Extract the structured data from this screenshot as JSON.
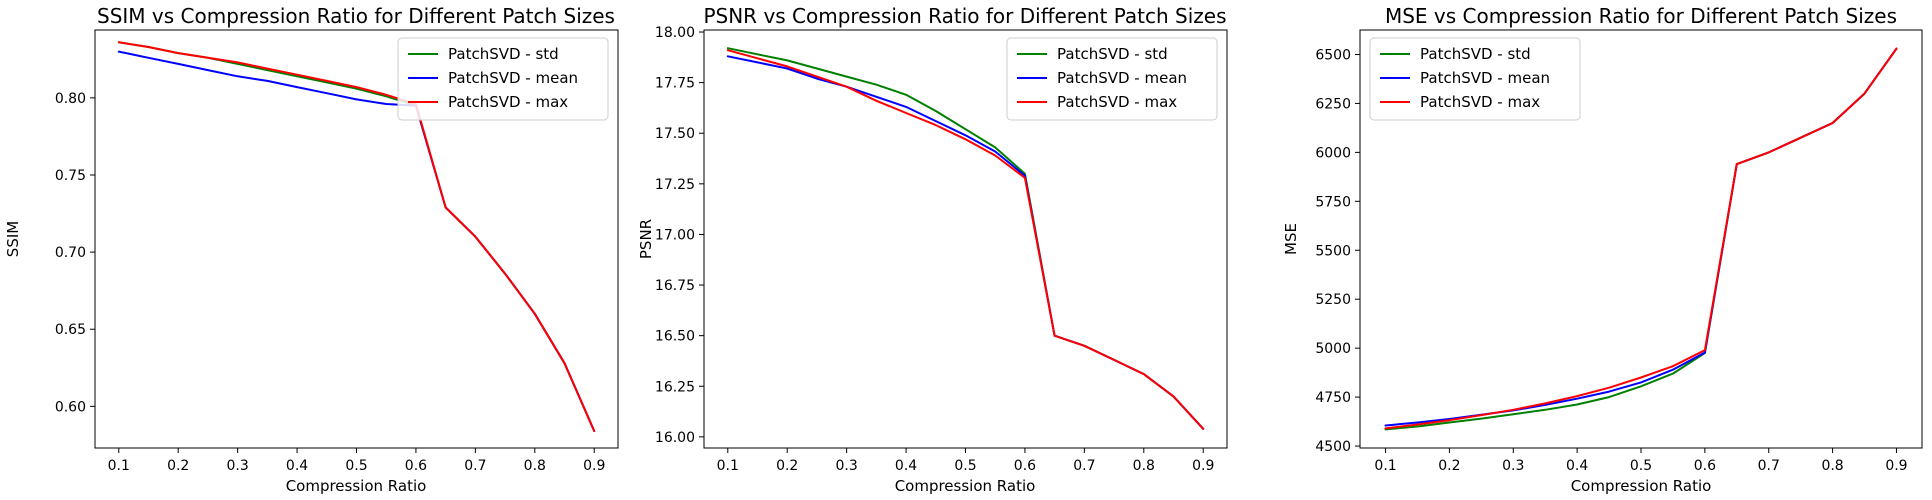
{
  "chart_data": [
    {
      "type": "line",
      "title": "SSIM vs Compression Ratio for Different Patch Sizes",
      "xlabel": "Compression Ratio",
      "ylabel": "SSIM",
      "xlim": [
        0.06,
        0.94
      ],
      "ylim": [
        0.573,
        0.844
      ],
      "xticks": [
        0.1,
        0.2,
        0.3,
        0.4,
        0.5,
        0.6,
        0.7,
        0.8,
        0.9
      ],
      "xtick_labels": [
        "0.1",
        "0.2",
        "0.3",
        "0.4",
        "0.5",
        "0.6",
        "0.7",
        "0.8",
        "0.9"
      ],
      "yticks": [
        0.6,
        0.65,
        0.7,
        0.75,
        0.8
      ],
      "ytick_labels": [
        "0.60",
        "0.65",
        "0.70",
        "0.75",
        "0.80"
      ],
      "legend_position": "top-right",
      "x": [
        0.1,
        0.15,
        0.2,
        0.25,
        0.3,
        0.35,
        0.4,
        0.45,
        0.5,
        0.55,
        0.6,
        0.65,
        0.7,
        0.75,
        0.8,
        0.85,
        0.9
      ],
      "series": [
        {
          "name": "PatchSVD - std",
          "color": "#008000",
          "values": [
            0.836,
            0.833,
            0.829,
            0.826,
            0.822,
            0.818,
            0.814,
            0.81,
            0.806,
            0.801,
            0.795,
            0.729,
            0.71,
            0.686,
            0.66,
            0.628,
            0.584
          ]
        },
        {
          "name": "PatchSVD - mean",
          "color": "#0000ff",
          "values": [
            0.83,
            0.826,
            0.822,
            0.818,
            0.814,
            0.811,
            0.807,
            0.803,
            0.799,
            0.796,
            0.795,
            0.729,
            0.71,
            0.686,
            0.66,
            0.628,
            0.584
          ]
        },
        {
          "name": "PatchSVD - max",
          "color": "#ff0000",
          "values": [
            0.836,
            0.833,
            0.829,
            0.826,
            0.823,
            0.819,
            0.815,
            0.811,
            0.807,
            0.802,
            0.796,
            0.729,
            0.71,
            0.686,
            0.66,
            0.628,
            0.584
          ]
        }
      ]
    },
    {
      "type": "line",
      "title": "PSNR vs Compression Ratio for Different Patch Sizes",
      "xlabel": "Compression Ratio",
      "ylabel": "PSNR",
      "xlim": [
        0.06,
        0.94
      ],
      "ylim": [
        15.945,
        18.01
      ],
      "xticks": [
        0.1,
        0.2,
        0.3,
        0.4,
        0.5,
        0.6,
        0.7,
        0.8,
        0.9
      ],
      "xtick_labels": [
        "0.1",
        "0.2",
        "0.3",
        "0.4",
        "0.5",
        "0.6",
        "0.7",
        "0.8",
        "0.9"
      ],
      "yticks": [
        16.0,
        16.25,
        16.5,
        16.75,
        17.0,
        17.25,
        17.5,
        17.75,
        18.0
      ],
      "ytick_labels": [
        "16.00",
        "16.25",
        "16.50",
        "16.75",
        "17.00",
        "17.25",
        "17.50",
        "17.75",
        "18.00"
      ],
      "legend_position": "top-right",
      "x": [
        0.1,
        0.15,
        0.2,
        0.25,
        0.3,
        0.35,
        0.4,
        0.45,
        0.5,
        0.55,
        0.6,
        0.65,
        0.7,
        0.75,
        0.8,
        0.85,
        0.9
      ],
      "series": [
        {
          "name": "PatchSVD - std",
          "color": "#008000",
          "values": [
            17.92,
            17.89,
            17.86,
            17.82,
            17.78,
            17.74,
            17.69,
            17.61,
            17.52,
            17.43,
            17.3,
            16.5,
            16.45,
            16.38,
            16.31,
            16.2,
            16.04
          ]
        },
        {
          "name": "PatchSVD - mean",
          "color": "#0000ff",
          "values": [
            17.88,
            17.85,
            17.82,
            17.77,
            17.73,
            17.68,
            17.63,
            17.56,
            17.49,
            17.41,
            17.29,
            16.5,
            16.45,
            16.38,
            16.31,
            16.2,
            16.04
          ]
        },
        {
          "name": "PatchSVD - max",
          "color": "#ff0000",
          "values": [
            17.91,
            17.87,
            17.83,
            17.78,
            17.73,
            17.66,
            17.6,
            17.54,
            17.47,
            17.39,
            17.28,
            16.5,
            16.45,
            16.38,
            16.31,
            16.2,
            16.04
          ]
        }
      ]
    },
    {
      "type": "line",
      "title": "MSE vs Compression Ratio for Different Patch Sizes",
      "xlabel": "Compression Ratio",
      "ylabel": "MSE",
      "xlim": [
        0.06,
        0.94
      ],
      "ylim": [
        4490,
        6625
      ],
      "xticks": [
        0.1,
        0.2,
        0.3,
        0.4,
        0.5,
        0.6,
        0.7,
        0.8,
        0.9
      ],
      "xtick_labels": [
        "0.1",
        "0.2",
        "0.3",
        "0.4",
        "0.5",
        "0.6",
        "0.7",
        "0.8",
        "0.9"
      ],
      "yticks": [
        4500,
        4750,
        5000,
        5250,
        5500,
        5750,
        6000,
        6250,
        6500
      ],
      "ytick_labels": [
        "4500",
        "4750",
        "5000",
        "5250",
        "5500",
        "5750",
        "6000",
        "6250",
        "6500"
      ],
      "legend_position": "top-left",
      "x": [
        0.1,
        0.15,
        0.2,
        0.25,
        0.3,
        0.35,
        0.4,
        0.45,
        0.5,
        0.55,
        0.6,
        0.65,
        0.7,
        0.75,
        0.8,
        0.85,
        0.9
      ],
      "series": [
        {
          "name": "PatchSVD - std",
          "color": "#008000",
          "values": [
            4585,
            4600,
            4620,
            4640,
            4662,
            4685,
            4712,
            4750,
            4805,
            4870,
            4975,
            5940,
            6000,
            6075,
            6150,
            6300,
            6530
          ]
        },
        {
          "name": "PatchSVD - mean",
          "color": "#0000ff",
          "values": [
            4605,
            4620,
            4638,
            4660,
            4682,
            4710,
            4742,
            4778,
            4825,
            4890,
            4978,
            5940,
            6000,
            6075,
            6150,
            6300,
            6530
          ]
        },
        {
          "name": "PatchSVD - max",
          "color": "#ff0000",
          "values": [
            4590,
            4610,
            4632,
            4658,
            4685,
            4718,
            4755,
            4798,
            4850,
            4908,
            4990,
            5940,
            6000,
            6075,
            6150,
            6300,
            6530
          ]
        }
      ]
    }
  ]
}
